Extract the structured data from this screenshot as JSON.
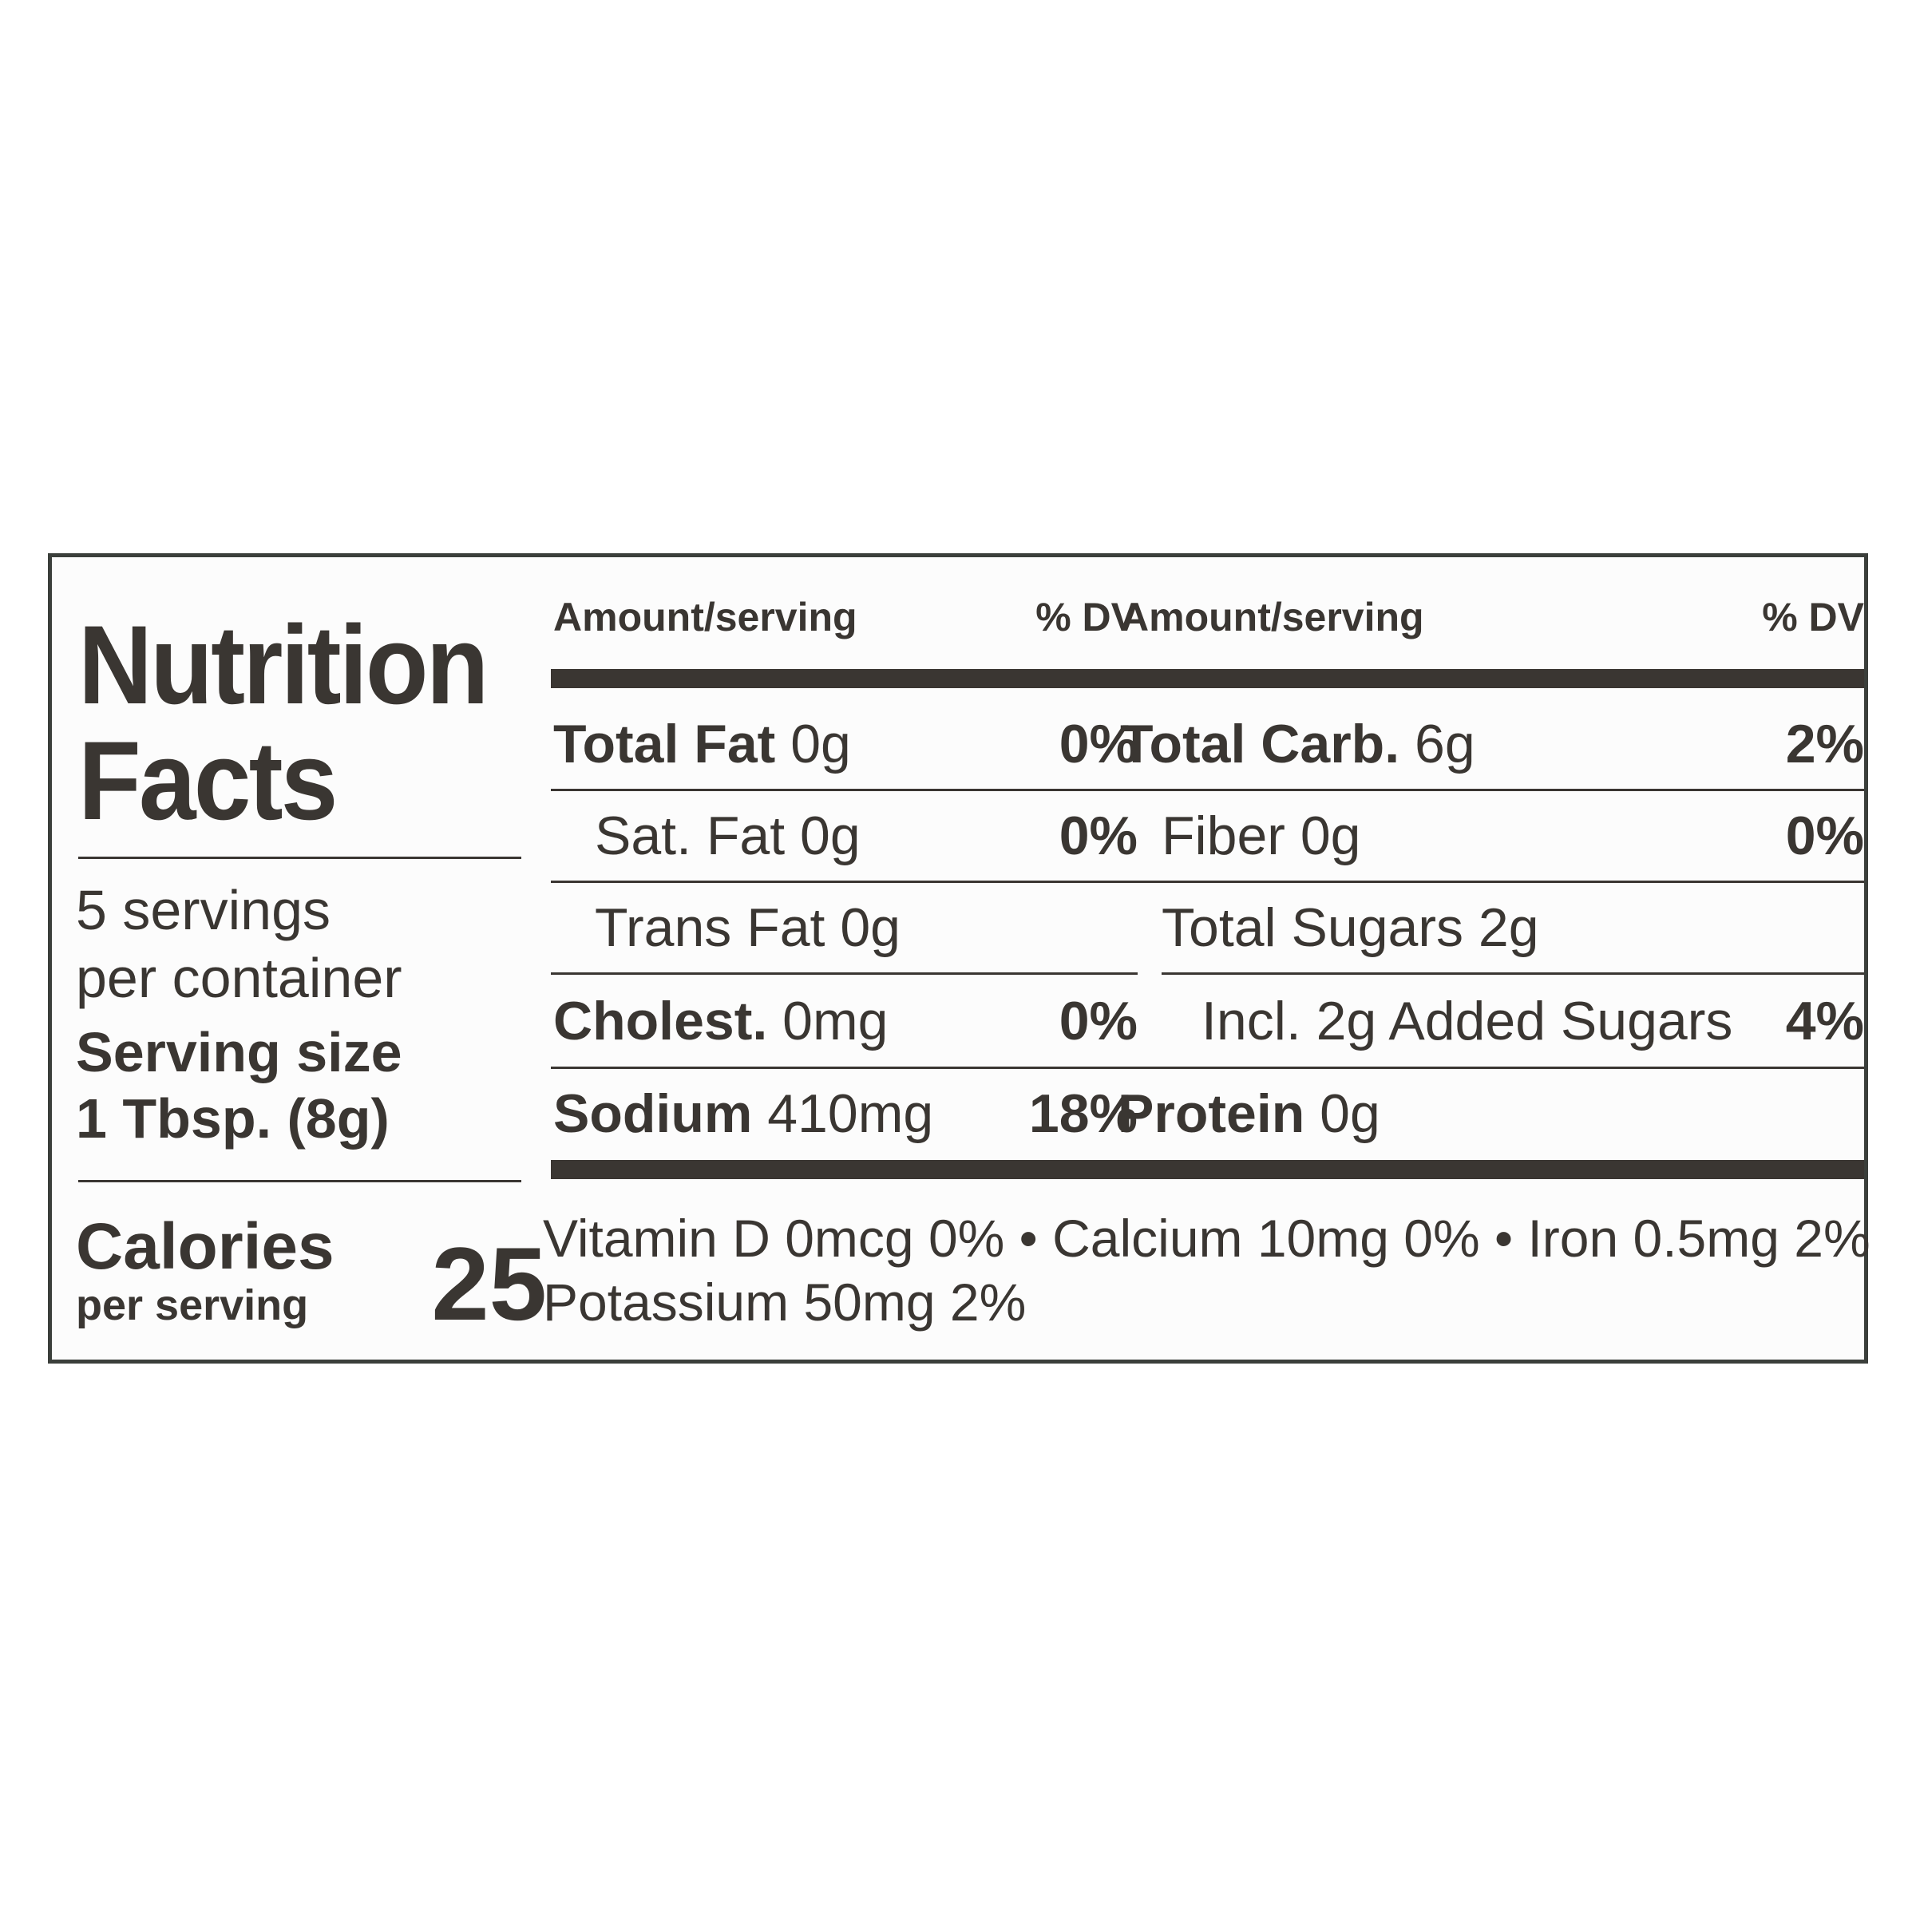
{
  "title": {
    "line1": "Nutrition",
    "line2": "Facts"
  },
  "servings": {
    "line1": "5 servings",
    "line2": "per container",
    "size_label": "Serving size",
    "size_value": "1 Tbsp. (8g)"
  },
  "calories": {
    "label": "Calories",
    "sub": "per serving",
    "value": "25"
  },
  "left_table": {
    "header_amount": "Amount/serving",
    "header_dv": "% DV",
    "rows": [
      {
        "name": "Total Fat",
        "amount": "0g",
        "dv": "0%"
      },
      {
        "name": "Sat. Fat",
        "amount": "0g",
        "dv": "0%"
      },
      {
        "name": "Trans Fat",
        "amount": "0g",
        "dv": ""
      },
      {
        "name": "Cholest.",
        "amount": "0mg",
        "dv": "0%"
      },
      {
        "name": "Sodium",
        "amount": "410mg",
        "dv": "18%"
      }
    ]
  },
  "right_table": {
    "header_amount": "Amount/serving",
    "header_dv": "% DV",
    "rows": [
      {
        "name": "Total Carb.",
        "amount": "6g",
        "dv": "2%"
      },
      {
        "name": "Fiber",
        "amount": "0g",
        "dv": "0%"
      },
      {
        "name": "Total Sugars",
        "amount": "2g",
        "dv": ""
      },
      {
        "name": "Incl. 2g Added Sugars",
        "amount": "",
        "dv": "4%"
      },
      {
        "name": "Protein",
        "amount": "0g",
        "dv": ""
      }
    ]
  },
  "vitamins": {
    "line1": "Vitamin D 0mcg 0%  •  Calcium 10mg 0%  •  Iron 0.5mg 2%",
    "line2": "Potassium 50mg 2%"
  }
}
